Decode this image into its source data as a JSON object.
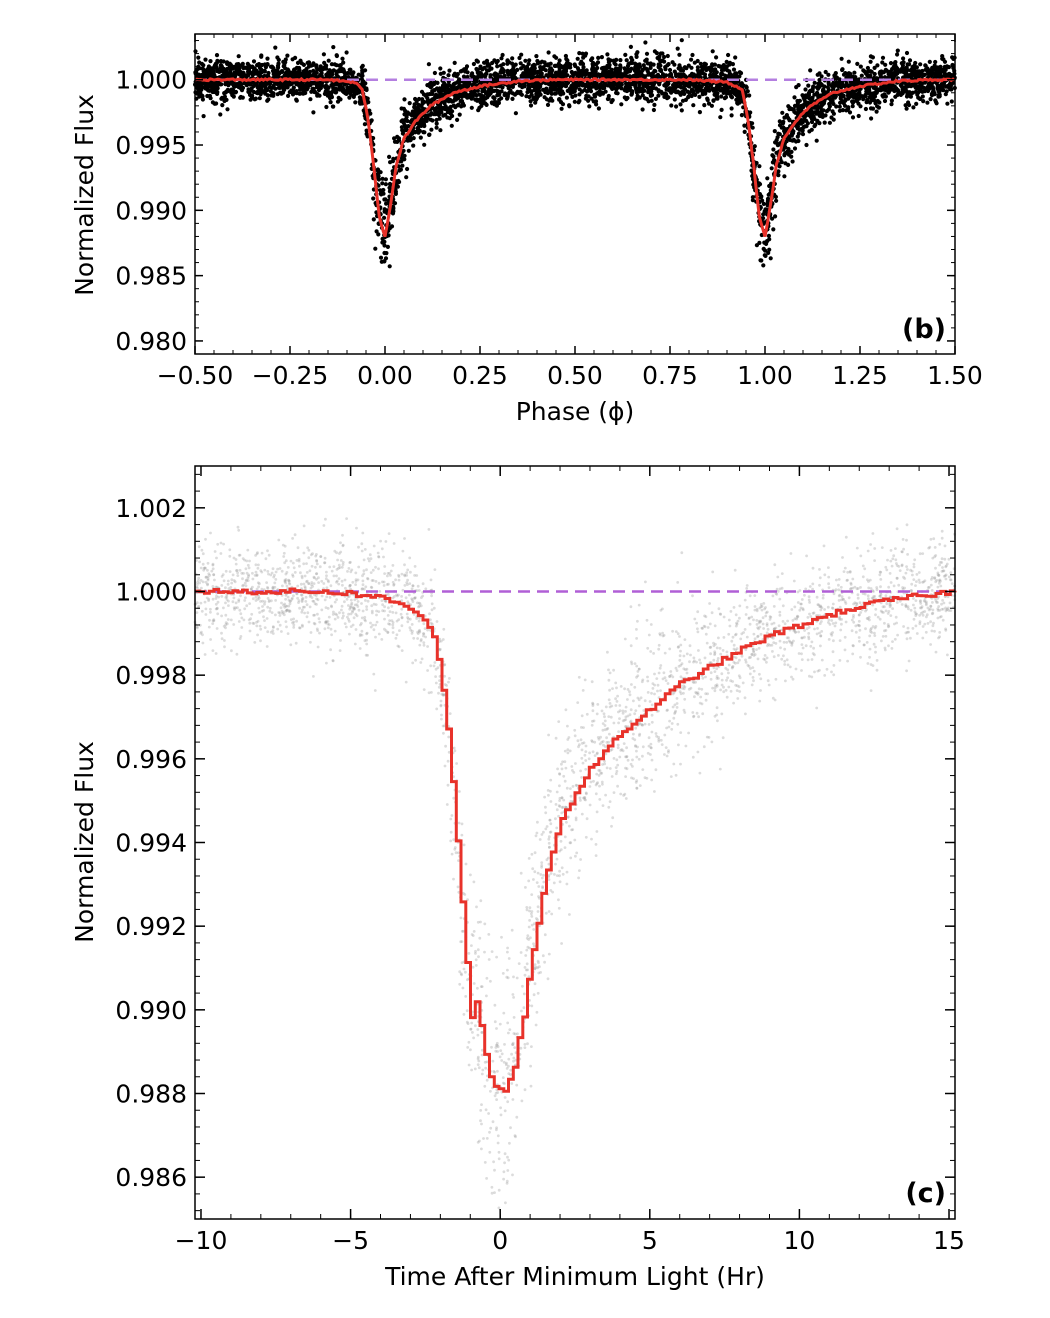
{
  "chart_data": [
    {
      "type": "scatter",
      "panel_label": "(b)",
      "xlabel": "Phase (ϕ)",
      "ylabel": "Normalized Flux",
      "xlim": [
        -0.5,
        1.5
      ],
      "ylim": [
        0.979,
        1.0035
      ],
      "xticks": [
        -0.5,
        -0.25,
        0.0,
        0.25,
        0.5,
        0.75,
        1.0,
        1.25,
        1.5
      ],
      "xtick_labels": [
        "−0.50",
        "−0.25",
        "0.00",
        "0.25",
        "0.50",
        "0.75",
        "1.00",
        "1.25",
        "1.50"
      ],
      "yticks": [
        0.98,
        0.985,
        0.99,
        0.995,
        1.0
      ],
      "ytick_labels": [
        "0.980",
        "0.985",
        "0.990",
        "0.995",
        "1.000"
      ],
      "reference_line": {
        "y": 1.0,
        "style": "dashed",
        "color": "#b47fe0"
      },
      "series": [
        {
          "kind": "scatter",
          "color": "#000000",
          "description_points": "phase-folded photometry (dense black points)"
        },
        {
          "kind": "binned-line",
          "color": "#e8322a",
          "x": [
            -0.5,
            -0.3,
            -0.15,
            -0.08,
            -0.06,
            -0.045,
            -0.03,
            -0.015,
            0.0,
            0.015,
            0.03,
            0.05,
            0.08,
            0.12,
            0.18,
            0.25,
            0.35,
            0.45,
            0.5,
            0.65,
            0.8,
            0.9,
            0.94,
            0.955,
            0.97,
            0.985,
            1.0,
            1.015,
            1.03,
            1.05,
            1.08,
            1.12,
            1.18,
            1.25,
            1.35,
            1.45,
            1.5
          ],
          "y": [
            1.0,
            1.0,
            1.0,
            0.9998,
            0.9993,
            0.997,
            0.9935,
            0.9895,
            0.988,
            0.9905,
            0.9935,
            0.9955,
            0.9968,
            0.998,
            0.999,
            0.9995,
            0.9999,
            1.0,
            1.0,
            1.0,
            1.0,
            0.9998,
            0.9993,
            0.997,
            0.9935,
            0.9895,
            0.988,
            0.9905,
            0.9935,
            0.9955,
            0.9968,
            0.998,
            0.999,
            0.9995,
            0.9999,
            1.0,
            1.0
          ]
        }
      ],
      "grid": false
    },
    {
      "type": "scatter",
      "panel_label": "(c)",
      "xlabel": "Time After Minimum Light (Hr)",
      "ylabel": "Normalized Flux",
      "xlim": [
        -10.2,
        15.2
      ],
      "ylim": [
        0.985,
        1.003
      ],
      "xticks": [
        -10,
        -5,
        0,
        5,
        10,
        15
      ],
      "xtick_labels": [
        "−10",
        "−5",
        "0",
        "5",
        "10",
        "15"
      ],
      "yticks": [
        0.986,
        0.988,
        0.99,
        0.992,
        0.994,
        0.996,
        0.998,
        1.0,
        1.002
      ],
      "ytick_labels": [
        "0.986",
        "0.988",
        "0.990",
        "0.992",
        "0.994",
        "0.996",
        "0.998",
        "1.000",
        "1.002"
      ],
      "reference_line": {
        "y": 1.0,
        "style": "dashed",
        "color": "#b05fd6"
      },
      "series": [
        {
          "kind": "scatter",
          "color": "#9a9a9a"
        },
        {
          "kind": "step-line",
          "color": "#e8322a",
          "x": [
            -10.2,
            -8,
            -6,
            -5,
            -4,
            -3,
            -2.5,
            -2.2,
            -2.0,
            -1.8,
            -1.6,
            -1.4,
            -1.2,
            -1.0,
            -0.8,
            -0.6,
            -0.4,
            -0.2,
            0.0,
            0.2,
            0.4,
            0.6,
            0.8,
            1.0,
            1.3,
            1.6,
            2.0,
            2.5,
            3.0,
            3.5,
            4.0,
            5.0,
            6.0,
            7.0,
            8.0,
            9.0,
            10.0,
            11.0,
            12.0,
            13.0,
            14.0,
            15.2
          ],
          "y": [
            1.0,
            1.0,
            1.0,
            0.99995,
            0.99985,
            0.9996,
            0.9993,
            0.9988,
            0.998,
            0.9968,
            0.9952,
            0.9935,
            0.9915,
            0.9898,
            0.9902,
            0.9892,
            0.9885,
            0.9882,
            0.98805,
            0.98815,
            0.9885,
            0.9893,
            0.99,
            0.9912,
            0.9924,
            0.9935,
            0.9945,
            0.9952,
            0.9958,
            0.9962,
            0.9966,
            0.9972,
            0.9978,
            0.9982,
            0.9986,
            0.99895,
            0.9992,
            0.99945,
            0.99965,
            0.9998,
            0.9999,
            1.0
          ]
        }
      ],
      "grid": false
    }
  ]
}
